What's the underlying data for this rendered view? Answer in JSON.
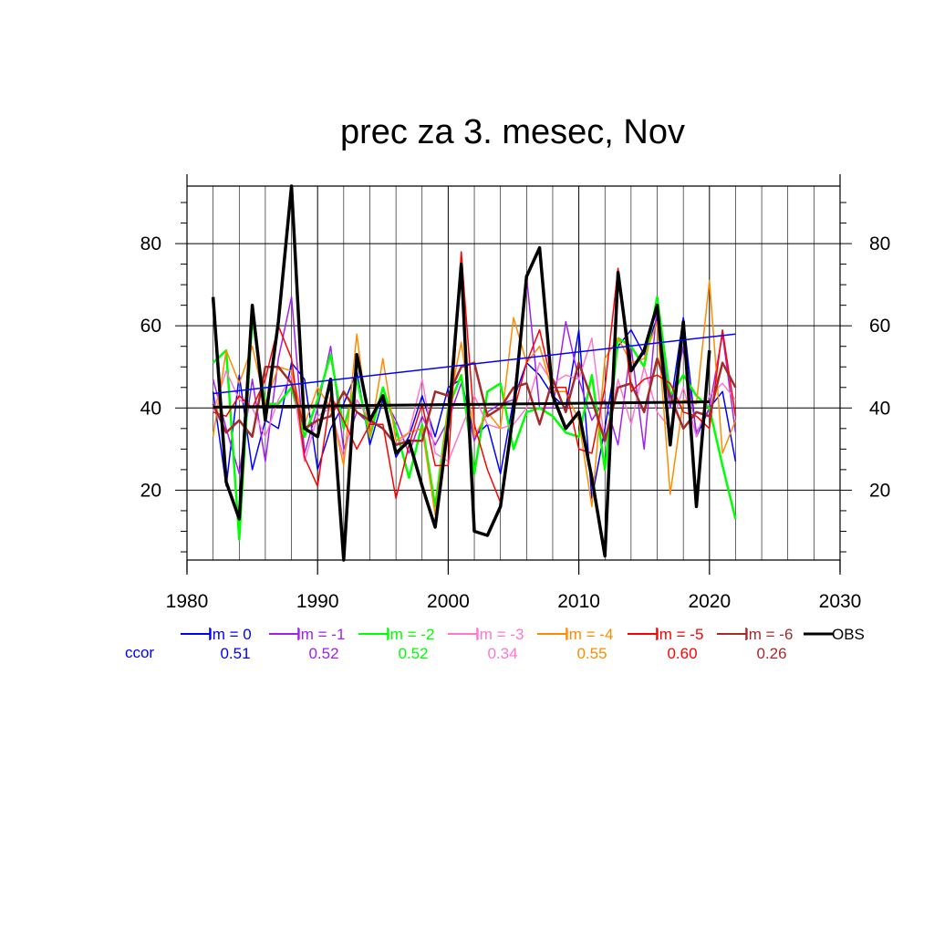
{
  "chart_data": {
    "type": "line",
    "title": "prec za 3. mesec, Nov",
    "xlabel": "",
    "ylabel": "",
    "xlim": [
      1980,
      2030
    ],
    "ylim": [
      3,
      94
    ],
    "xticks": [
      1980,
      1990,
      2000,
      2010,
      2020,
      2030
    ],
    "yticks": [
      20,
      40,
      60,
      80
    ],
    "grid": true,
    "legend_position": "bottom",
    "ccor_label": "ccor",
    "years": [
      1982,
      1983,
      1984,
      1985,
      1986,
      1987,
      1988,
      1989,
      1990,
      1991,
      1992,
      1993,
      1994,
      1995,
      1996,
      1997,
      1998,
      1999,
      2000,
      2001,
      2002,
      2003,
      2004,
      2005,
      2006,
      2007,
      2008,
      2009,
      2010,
      2011,
      2012,
      2013,
      2014,
      2015,
      2016,
      2017,
      2018,
      2019,
      2020,
      2021,
      2022
    ],
    "obs_years": [
      1982,
      1983,
      1984,
      1985,
      1986,
      1987,
      1988,
      1989,
      1990,
      1991,
      1992,
      1993,
      1994,
      1995,
      1996,
      1997,
      1998,
      1999,
      2000,
      2001,
      2002,
      2003,
      2004,
      2005,
      2006,
      2007,
      2008,
      2009,
      2010,
      2011,
      2012,
      2013,
      2014,
      2015,
      2016,
      2017,
      2018,
      2019,
      2020
    ],
    "series": [
      {
        "name": "lm = 0",
        "color": "#0000ff",
        "width": 1.5,
        "corr": "0.51",
        "values": [
          44,
          21,
          48,
          25,
          37,
          35,
          51,
          47,
          25,
          35,
          41,
          49,
          31,
          42,
          28,
          33,
          43,
          33,
          45,
          47,
          33,
          36,
          24,
          42,
          51,
          48,
          43,
          40,
          59,
          18,
          35,
          55,
          59,
          53,
          62,
          40,
          62,
          33,
          40,
          44,
          27
        ]
      },
      {
        "name": "lm = -1",
        "color": "#a020f0",
        "width": 1.5,
        "corr": "0.52",
        "values": [
          47,
          35,
          24,
          47,
          27,
          52,
          67,
          29,
          40,
          55,
          30,
          39,
          36,
          43,
          37,
          29,
          38,
          31,
          37,
          46,
          32,
          39,
          41,
          42,
          72,
          40,
          40,
          61,
          47,
          37,
          42,
          31,
          55,
          30,
          65,
          40,
          55,
          34,
          40,
          58,
          34
        ]
      },
      {
        "name": "lm = -2",
        "color": "#00ff00",
        "width": 2.5,
        "corr": "0.52",
        "values": [
          51,
          54,
          8,
          62,
          41,
          41,
          45,
          33,
          42,
          53,
          35,
          47,
          33,
          45,
          35,
          23,
          36,
          16,
          40,
          48,
          24,
          44,
          46,
          30,
          39,
          40,
          38,
          34,
          33,
          48,
          25,
          57,
          55,
          50,
          67,
          43,
          48,
          43,
          40,
          26,
          13
        ]
      },
      {
        "name": "lm = -3",
        "color": "#ff77cc",
        "width": 1.5,
        "corr": "0.34",
        "values": [
          39,
          49,
          42,
          40,
          33,
          42,
          48,
          27,
          38,
          40,
          28,
          42,
          37,
          35,
          31,
          34,
          47,
          29,
          27,
          35,
          43,
          36,
          35,
          36,
          40,
          51,
          46,
          48,
          47,
          57,
          31,
          47,
          36,
          50,
          39,
          35,
          45,
          33,
          43,
          46,
          42
        ]
      },
      {
        "name": "lm = -4",
        "color": "#ff8c00",
        "width": 1.5,
        "corr": "0.55",
        "values": [
          33,
          54,
          46,
          55,
          41,
          50,
          49,
          36,
          45,
          40,
          26,
          58,
          33,
          52,
          32,
          34,
          35,
          14,
          40,
          56,
          33,
          39,
          35,
          62,
          51,
          55,
          44,
          44,
          37,
          16,
          52,
          57,
          51,
          52,
          61,
          19,
          42,
          41,
          71,
          29,
          37
        ]
      },
      {
        "name": "lm = -5",
        "color": "#ff0000",
        "width": 1.5,
        "corr": "0.60",
        "values": [
          39,
          38,
          43,
          40,
          47,
          60,
          52,
          28,
          21,
          43,
          37,
          30,
          36,
          36,
          18,
          31,
          41,
          26,
          26,
          78,
          36,
          25,
          17,
          39,
          51,
          59,
          45,
          45,
          30,
          29,
          45,
          74,
          44,
          47,
          48,
          46,
          39,
          38,
          35,
          59,
          38
        ]
      },
      {
        "name": "lm = -6",
        "color": "#a52a2a",
        "width": 2.5,
        "corr": "0.26",
        "values": [
          41,
          34,
          37,
          33,
          50,
          50,
          46,
          35,
          37,
          38,
          44,
          39,
          37,
          35,
          31,
          32,
          32,
          44,
          43,
          50,
          51,
          38,
          40,
          45,
          46,
          36,
          47,
          39,
          51,
          42,
          32,
          45,
          46,
          39,
          52,
          43,
          35,
          39,
          38,
          51,
          45
        ]
      },
      {
        "name": "OBS",
        "color": "#000000",
        "width": 3.5,
        "corr": "",
        "values": [
          67,
          22,
          13,
          65,
          37,
          61,
          94,
          35,
          33,
          47,
          3,
          53,
          37,
          43,
          29,
          32,
          21,
          11,
          36,
          75,
          10,
          9,
          16,
          39,
          72,
          79,
          43,
          35,
          39,
          23,
          4,
          73,
          49,
          54,
          65,
          31,
          61,
          16,
          54
        ]
      }
    ],
    "trends": [
      {
        "name": "lm = 0 trend",
        "color": "#0000ff",
        "width": 1.5,
        "x": [
          1982,
          2022
        ],
        "y": [
          43.5,
          58
        ]
      },
      {
        "name": "OBS trend",
        "color": "#000000",
        "width": 3,
        "x": [
          1982,
          2020
        ],
        "y": [
          40.2,
          41.5
        ]
      }
    ]
  }
}
